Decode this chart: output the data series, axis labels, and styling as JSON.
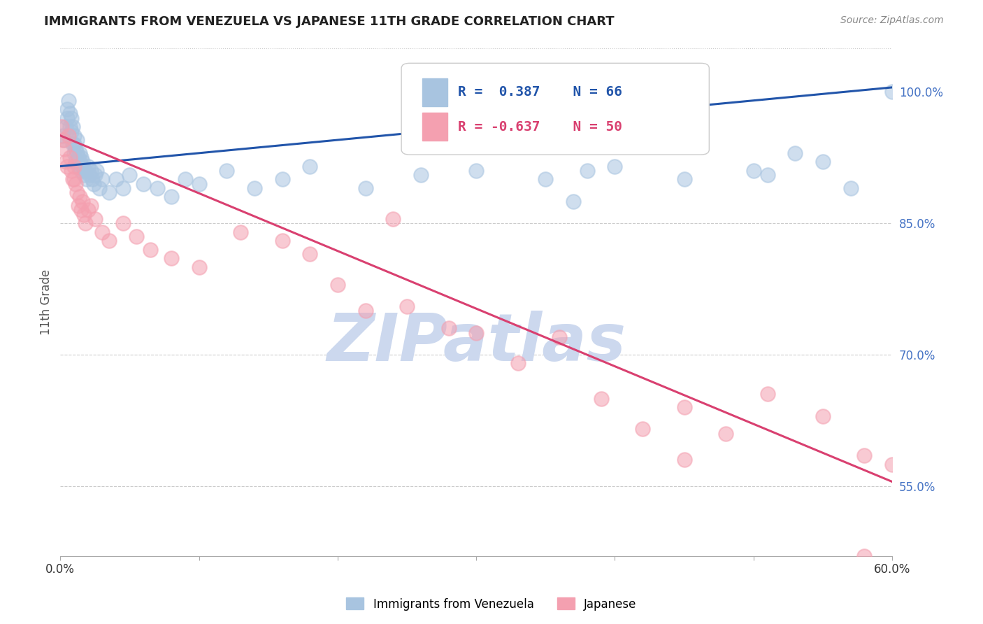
{
  "title": "IMMIGRANTS FROM VENEZUELA VS JAPANESE 11TH GRADE CORRELATION CHART",
  "source": "Source: ZipAtlas.com",
  "ylabel": "11th Grade",
  "legend_label_blue": "Immigrants from Venezuela",
  "legend_label_pink": "Japanese",
  "blue_color": "#a8c4e0",
  "pink_color": "#f4a0b0",
  "blue_line_color": "#2255aa",
  "pink_line_color": "#d94070",
  "watermark_color": "#ccd8ee",
  "background_color": "#ffffff",
  "xlim": [
    0,
    60
  ],
  "ylim": [
    47,
    105
  ],
  "blue_scatter_x": [
    0.2,
    0.3,
    0.4,
    0.5,
    0.5,
    0.6,
    0.7,
    0.7,
    0.8,
    0.8,
    0.9,
    0.9,
    1.0,
    1.0,
    1.0,
    1.1,
    1.1,
    1.2,
    1.2,
    1.3,
    1.3,
    1.4,
    1.4,
    1.5,
    1.5,
    1.6,
    1.6,
    1.7,
    1.8,
    1.9,
    2.0,
    2.1,
    2.2,
    2.3,
    2.4,
    2.5,
    2.6,
    2.8,
    3.0,
    3.5,
    4.0,
    4.5,
    5.0,
    6.0,
    7.0,
    8.0,
    9.0,
    10.0,
    12.0,
    14.0,
    16.0,
    18.0,
    22.0,
    26.0,
    30.0,
    35.0,
    40.0,
    45.0,
    50.0,
    55.0,
    57.0,
    60.0,
    37.0,
    38.0,
    51.0,
    53.0
  ],
  "blue_scatter_y": [
    95.0,
    94.5,
    96.0,
    97.0,
    98.0,
    99.0,
    97.5,
    96.0,
    95.5,
    97.0,
    96.0,
    94.0,
    95.0,
    94.0,
    93.0,
    93.5,
    92.0,
    93.0,
    94.5,
    92.5,
    91.5,
    93.0,
    92.0,
    91.0,
    92.5,
    91.5,
    92.0,
    90.5,
    91.0,
    90.0,
    91.5,
    90.5,
    91.0,
    90.0,
    89.5,
    90.5,
    91.0,
    89.0,
    90.0,
    88.5,
    90.0,
    89.0,
    90.5,
    89.5,
    89.0,
    88.0,
    90.0,
    89.5,
    91.0,
    89.0,
    90.0,
    91.5,
    89.0,
    90.5,
    91.0,
    90.0,
    91.5,
    90.0,
    91.0,
    92.0,
    89.0,
    100.0,
    87.5,
    91.0,
    90.5,
    93.0
  ],
  "pink_scatter_x": [
    0.1,
    0.2,
    0.3,
    0.4,
    0.5,
    0.6,
    0.7,
    0.8,
    0.9,
    1.0,
    1.0,
    1.1,
    1.2,
    1.3,
    1.4,
    1.5,
    1.6,
    1.7,
    1.8,
    2.0,
    2.2,
    2.5,
    3.0,
    3.5,
    4.5,
    5.5,
    6.5,
    8.0,
    10.0,
    13.0,
    16.0,
    18.0,
    20.0,
    22.0,
    25.0,
    28.0,
    30.0,
    33.0,
    36.0,
    39.0,
    42.0,
    45.0,
    48.0,
    51.0,
    55.0,
    58.0,
    60.0,
    24.0,
    45.0,
    58.0
  ],
  "pink_scatter_y": [
    96.0,
    94.5,
    93.5,
    92.0,
    91.5,
    95.0,
    92.5,
    91.0,
    90.0,
    91.5,
    90.0,
    89.5,
    88.5,
    87.0,
    88.0,
    86.5,
    87.5,
    86.0,
    85.0,
    86.5,
    87.0,
    85.5,
    84.0,
    83.0,
    85.0,
    83.5,
    82.0,
    81.0,
    80.0,
    84.0,
    83.0,
    81.5,
    78.0,
    75.0,
    75.5,
    73.0,
    72.5,
    69.0,
    72.0,
    65.0,
    61.5,
    64.0,
    61.0,
    65.5,
    63.0,
    58.5,
    57.5,
    85.5,
    58.0,
    47.0
  ]
}
